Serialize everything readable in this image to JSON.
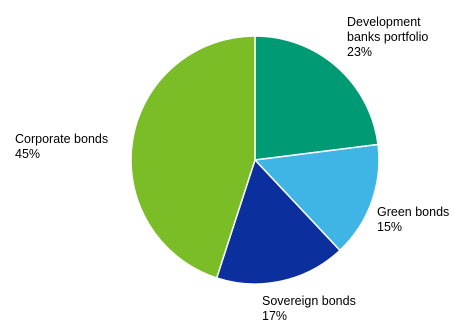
{
  "chart_data": {
    "type": "pie",
    "slices": [
      {
        "label": "Development banks portfolio",
        "value": 23,
        "value_label": "23%",
        "color": "#009a75"
      },
      {
        "label": "Green bonds",
        "value": 15,
        "value_label": "15%",
        "color": "#3fb5e6"
      },
      {
        "label": "Sovereign bonds",
        "value": 17,
        "value_label": "17%",
        "color": "#0b2f9c"
      },
      {
        "label": "Corporate bonds",
        "value": 45,
        "value_label": "45%",
        "color": "#7abd26"
      }
    ],
    "start_angle": "12 o'clock",
    "direction": "clockwise",
    "slice_border": "#ffffff",
    "legend": "none"
  }
}
